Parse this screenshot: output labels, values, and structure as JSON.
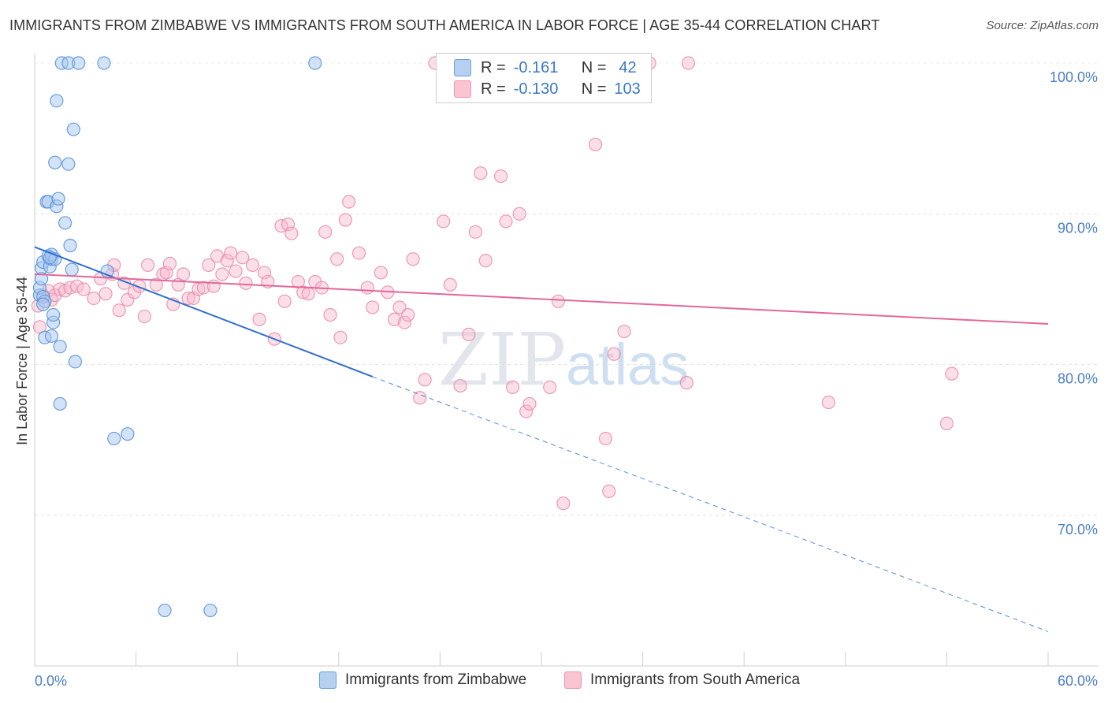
{
  "title": "IMMIGRANTS FROM ZIMBABWE VS IMMIGRANTS FROM SOUTH AMERICA IN LABOR FORCE | AGE 35-44 CORRELATION CHART",
  "source": "Source: ZipAtlas.com",
  "watermark": {
    "zip": "ZIP",
    "atlas": "atlas"
  },
  "legend": {
    "r_label": "R =",
    "n_label": "N =",
    "zimbabwe": {
      "r": "-0.161",
      "n": "42"
    },
    "south_america": {
      "r": "-0.130",
      "n": "103"
    }
  },
  "colors": {
    "zimbabwe_fill": "#a8c8f0",
    "zimbabwe_stroke": "#5a93d8",
    "zimbabwe_line": "#2f6fd0",
    "south_america_fill": "#f6b8cb",
    "south_america_stroke": "#ea8aa8",
    "south_america_line": "#e2689a",
    "tick_text": "#4a7fc4"
  },
  "chart_data": {
    "type": "scatter",
    "title": "IMMIGRANTS FROM ZIMBABWE VS IMMIGRANTS FROM SOUTH AMERICA IN LABOR FORCE | AGE 35-44 CORRELATION CHART",
    "xlabel": "",
    "ylabel": "In Labor Force | Age 35-44",
    "xlim": [
      0,
      60
    ],
    "ylim": [
      61,
      101
    ],
    "x_tick_labels": [
      "0.0%",
      "60.0%"
    ],
    "y_ticks": [
      70,
      80,
      90,
      100
    ],
    "y_tick_labels": [
      "70.0%",
      "80.0%",
      "90.0%",
      "100.0%"
    ],
    "grid": true,
    "series": [
      {
        "name": "Immigrants from Zimbabwe",
        "trend": {
          "x": [
            0,
            20
          ],
          "y": [
            87.8,
            79.2
          ],
          "dashed_to": [
            60,
            62.3
          ]
        },
        "points": [
          [
            0.3,
            84.6
          ],
          [
            0.3,
            85.1
          ],
          [
            0.4,
            85.7
          ],
          [
            0.4,
            86.4
          ],
          [
            0.5,
            86.8
          ],
          [
            0.6,
            81.8
          ],
          [
            0.5,
            84.5
          ],
          [
            0.6,
            84.2
          ],
          [
            0.7,
            90.8
          ],
          [
            0.8,
            90.8
          ],
          [
            0.8,
            87.2
          ],
          [
            0.9,
            86.5
          ],
          [
            1.0,
            87.0
          ],
          [
            1.0,
            87.3
          ],
          [
            1.1,
            82.8
          ],
          [
            1.1,
            83.3
          ],
          [
            1.2,
            87.0
          ],
          [
            1.2,
            93.4
          ],
          [
            1.3,
            97.5
          ],
          [
            1.3,
            90.5
          ],
          [
            1.4,
            91.0
          ],
          [
            1.5,
            81.2
          ],
          [
            1.5,
            77.4
          ],
          [
            1.6,
            100.0
          ],
          [
            1.8,
            89.4
          ],
          [
            2.0,
            100.0
          ],
          [
            2.0,
            93.3
          ],
          [
            2.1,
            87.9
          ],
          [
            2.2,
            86.3
          ],
          [
            2.3,
            95.6
          ],
          [
            2.4,
            80.2
          ],
          [
            2.6,
            100.0
          ],
          [
            4.1,
            100.0
          ],
          [
            4.3,
            86.2
          ],
          [
            4.7,
            75.1
          ],
          [
            5.5,
            75.4
          ],
          [
            7.7,
            63.7
          ],
          [
            10.4,
            63.7
          ],
          [
            16.6,
            100.0
          ],
          [
            0.5,
            84.0
          ],
          [
            1.0,
            81.9
          ],
          [
            0.9,
            87.1
          ]
        ]
      },
      {
        "name": "Immigrants from South America",
        "trend": {
          "x": [
            0,
            60
          ],
          "y": [
            86.0,
            82.7
          ]
        },
        "points": [
          [
            0.3,
            82.5
          ],
          [
            0.5,
            84.6
          ],
          [
            0.8,
            84.9
          ],
          [
            1.0,
            84.3
          ],
          [
            1.2,
            84.6
          ],
          [
            1.5,
            85.0
          ],
          [
            1.8,
            84.9
          ],
          [
            2.1,
            85.1
          ],
          [
            2.5,
            85.2
          ],
          [
            2.9,
            85.0
          ],
          [
            3.5,
            84.4
          ],
          [
            3.9,
            85.7
          ],
          [
            4.2,
            84.7
          ],
          [
            4.6,
            86.0
          ],
          [
            4.7,
            86.6
          ],
          [
            5.0,
            83.6
          ],
          [
            5.3,
            85.4
          ],
          [
            5.5,
            84.3
          ],
          [
            5.9,
            84.8
          ],
          [
            6.2,
            85.2
          ],
          [
            6.5,
            83.2
          ],
          [
            6.7,
            86.6
          ],
          [
            7.2,
            85.3
          ],
          [
            7.6,
            86.0
          ],
          [
            7.8,
            86.1
          ],
          [
            8.0,
            86.7
          ],
          [
            8.2,
            84.0
          ],
          [
            8.5,
            85.3
          ],
          [
            8.8,
            86.0
          ],
          [
            9.1,
            84.4
          ],
          [
            9.4,
            84.4
          ],
          [
            9.7,
            85.0
          ],
          [
            10.0,
            85.1
          ],
          [
            10.3,
            86.6
          ],
          [
            10.6,
            85.2
          ],
          [
            10.8,
            87.2
          ],
          [
            11.1,
            86.0
          ],
          [
            11.4,
            86.9
          ],
          [
            11.6,
            87.4
          ],
          [
            11.9,
            86.2
          ],
          [
            12.3,
            87.1
          ],
          [
            12.5,
            85.4
          ],
          [
            12.9,
            86.6
          ],
          [
            13.3,
            83.0
          ],
          [
            13.6,
            86.1
          ],
          [
            13.8,
            85.5
          ],
          [
            14.2,
            81.7
          ],
          [
            14.6,
            89.2
          ],
          [
            14.8,
            84.2
          ],
          [
            15.0,
            89.3
          ],
          [
            15.2,
            88.7
          ],
          [
            15.6,
            85.5
          ],
          [
            15.9,
            84.8
          ],
          [
            16.2,
            84.7
          ],
          [
            16.6,
            85.5
          ],
          [
            17.0,
            85.1
          ],
          [
            17.2,
            88.8
          ],
          [
            17.5,
            83.3
          ],
          [
            17.9,
            87.0
          ],
          [
            18.1,
            81.8
          ],
          [
            18.4,
            89.6
          ],
          [
            18.6,
            90.8
          ],
          [
            19.2,
            87.4
          ],
          [
            19.7,
            85.1
          ],
          [
            20.0,
            83.8
          ],
          [
            20.5,
            86.1
          ],
          [
            20.9,
            84.8
          ],
          [
            21.3,
            83.0
          ],
          [
            21.6,
            83.8
          ],
          [
            21.9,
            82.8
          ],
          [
            22.1,
            83.3
          ],
          [
            22.4,
            87.0
          ],
          [
            22.8,
            77.8
          ],
          [
            23.1,
            79.0
          ],
          [
            23.7,
            100.0
          ],
          [
            24.2,
            89.5
          ],
          [
            24.6,
            85.3
          ],
          [
            25.2,
            78.6
          ],
          [
            25.7,
            82.0
          ],
          [
            26.1,
            88.8
          ],
          [
            26.4,
            92.7
          ],
          [
            26.7,
            86.9
          ],
          [
            27.6,
            92.5
          ],
          [
            27.9,
            89.5
          ],
          [
            28.3,
            78.5
          ],
          [
            28.7,
            90.0
          ],
          [
            29.1,
            76.9
          ],
          [
            29.3,
            77.4
          ],
          [
            30.5,
            78.5
          ],
          [
            31.0,
            84.2
          ],
          [
            31.3,
            70.8
          ],
          [
            33.2,
            94.6
          ],
          [
            33.8,
            75.1
          ],
          [
            34.0,
            71.6
          ],
          [
            34.3,
            80.7
          ],
          [
            34.9,
            82.2
          ],
          [
            36.4,
            100.0
          ],
          [
            38.6,
            78.8
          ],
          [
            38.7,
            100.0
          ],
          [
            47.0,
            77.5
          ],
          [
            54.0,
            76.1
          ],
          [
            54.3,
            79.4
          ],
          [
            0.2,
            83.9
          ]
        ]
      }
    ]
  },
  "bottom_legend": {
    "zimbabwe_label": "Immigrants from Zimbabwe",
    "south_america_label": "Immigrants from South America"
  }
}
